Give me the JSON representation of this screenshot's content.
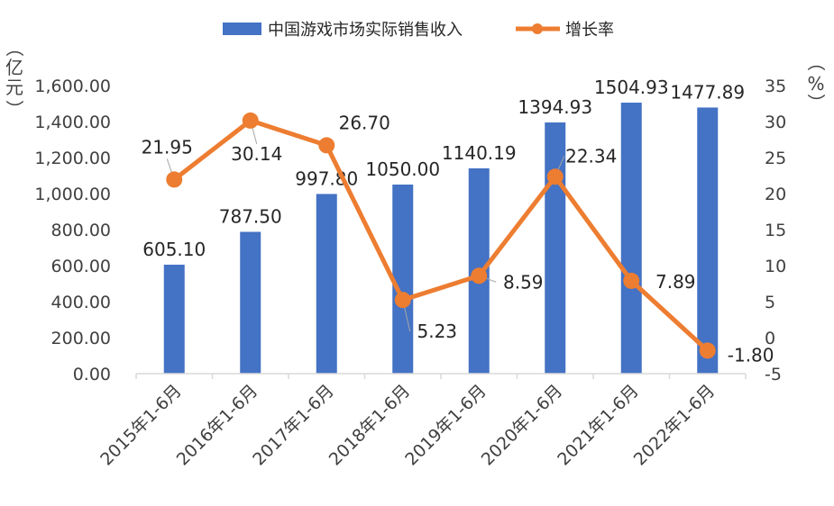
{
  "chart_data": {
    "type": "bar+line",
    "categories": [
      "2015年1-6月",
      "2016年1-6月",
      "2017年1-6月",
      "2018年1-6月",
      "2019年1-6月",
      "2020年1-6月",
      "2021年1-6月",
      "2022年1-6月"
    ],
    "series": [
      {
        "name": "中国游戏市场实际销售收入",
        "type": "bar",
        "axis": "left",
        "color": "#4472C4",
        "values": [
          605.1,
          787.5,
          997.8,
          1050.0,
          1140.19,
          1394.93,
          1504.93,
          1477.89
        ],
        "labels": [
          "605.10",
          "787.50",
          "997.80",
          "1050.00",
          "1140.19",
          "1394.93",
          "1504.93",
          "1477.89"
        ]
      },
      {
        "name": "增长率",
        "type": "line",
        "axis": "right",
        "color": "#ED7D31",
        "values": [
          21.95,
          30.14,
          26.7,
          5.23,
          8.59,
          22.34,
          7.89,
          -1.8
        ],
        "labels": [
          "21.95",
          "30.14",
          "26.70",
          "5.23",
          "8.59",
          "22.34",
          "7.89",
          "-1.80"
        ]
      }
    ],
    "left_axis": {
      "unit_chars": [
        "（",
        "亿",
        "元",
        "）"
      ],
      "ylim": [
        0,
        1600
      ],
      "ticks": [
        "0.00",
        "200.00",
        "400.00",
        "600.00",
        "800.00",
        "1,000.00",
        "1,200.00",
        "1,400.00",
        "1,600.00"
      ]
    },
    "right_axis": {
      "unit_chars": [
        "（",
        "%",
        "）"
      ],
      "ylim": [
        -5,
        35
      ],
      "ticks": [
        "-5",
        "0",
        "5",
        "10",
        "15",
        "20",
        "25",
        "30",
        "35"
      ]
    },
    "legend_position": "top-center"
  }
}
